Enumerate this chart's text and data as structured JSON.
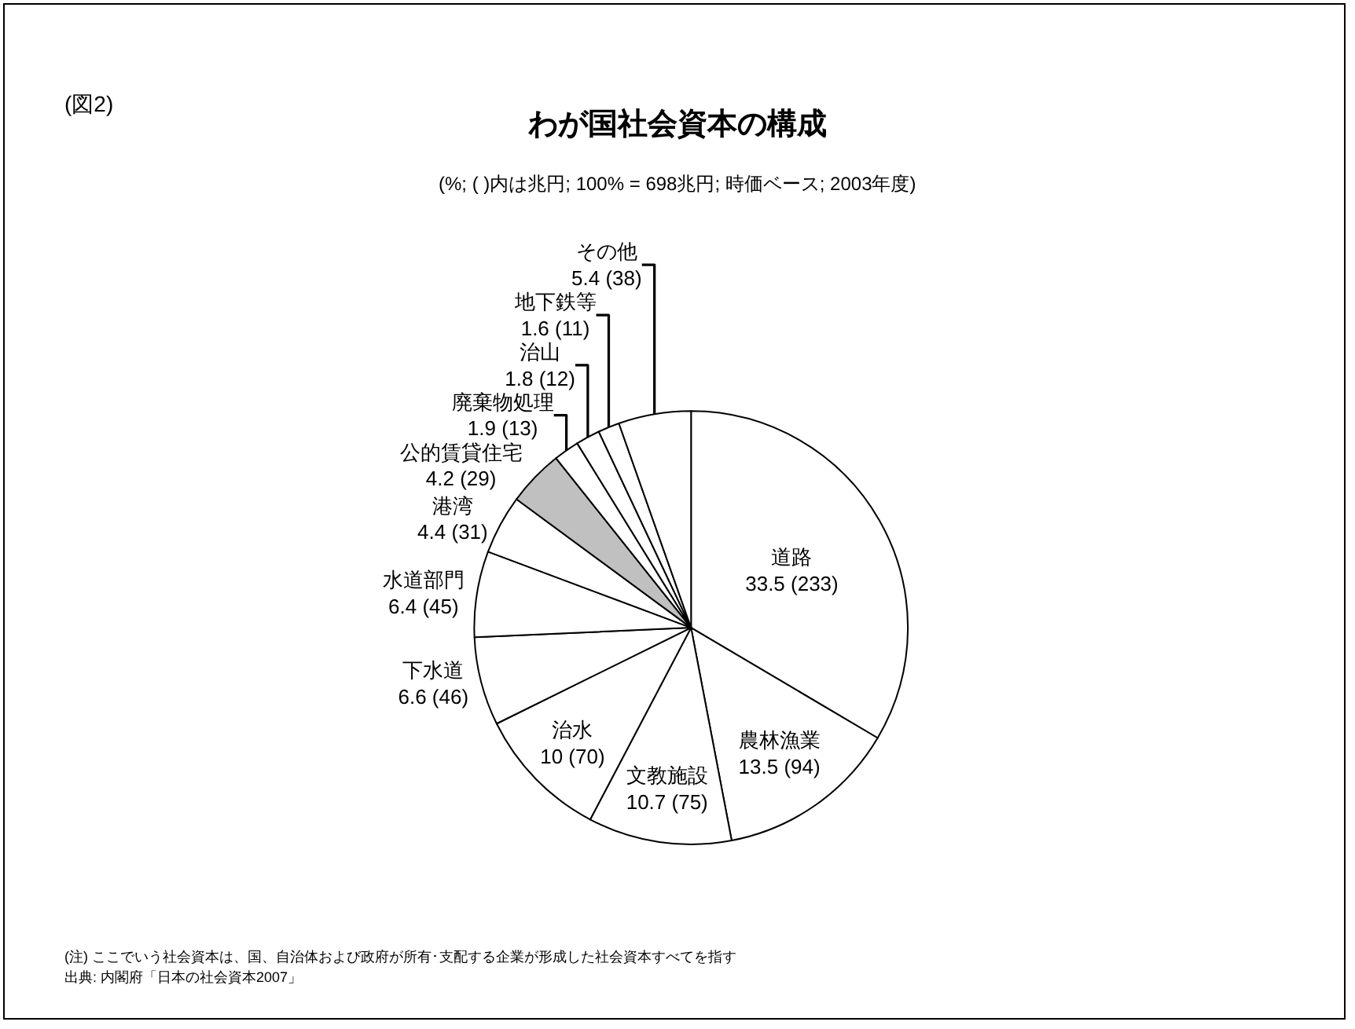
{
  "chart_data": {
    "type": "pie",
    "title": "わが国社会資本の構成",
    "subtitle": "(%; ( )内は兆円; 100% = 698兆円; 時価ベース; 2003年度)",
    "categories": [
      "道路",
      "農林漁業",
      "文教施設",
      "治水",
      "下水道",
      "水道部門",
      "港湾",
      "公的賃貸住宅",
      "廃棄物処理",
      "治山",
      "地下鉄等",
      "その他"
    ],
    "values": [
      33.5,
      13.5,
      10.7,
      10,
      6.6,
      6.4,
      4.4,
      4.2,
      1.9,
      1.8,
      1.6,
      5.4
    ],
    "value_labels": [
      "33.5 (233)",
      "13.5 (94)",
      "10.7 (75)",
      "10 (70)",
      "6.6 (46)",
      "6.4 (45)",
      "4.4 (31)",
      "4.2 (29)",
      "1.9 (13)",
      "1.8 (12)",
      "1.6 (11)",
      "5.4 (38)"
    ],
    "colors": [
      "#ffffff",
      "#ffffff",
      "#ffffff",
      "#ffffff",
      "#ffffff",
      "#ffffff",
      "#ffffff",
      "#c0c0c0",
      "#ffffff",
      "#ffffff",
      "#ffffff",
      "#ffffff"
    ],
    "legend": false,
    "annotations": [
      "(図2)",
      "(注) ここでいう社会資本は、国、自治体および政府が所有･支配する企業が形成した社会資本すべてを指す",
      "出典: 内閣府「日本の社会資本2007」"
    ]
  }
}
